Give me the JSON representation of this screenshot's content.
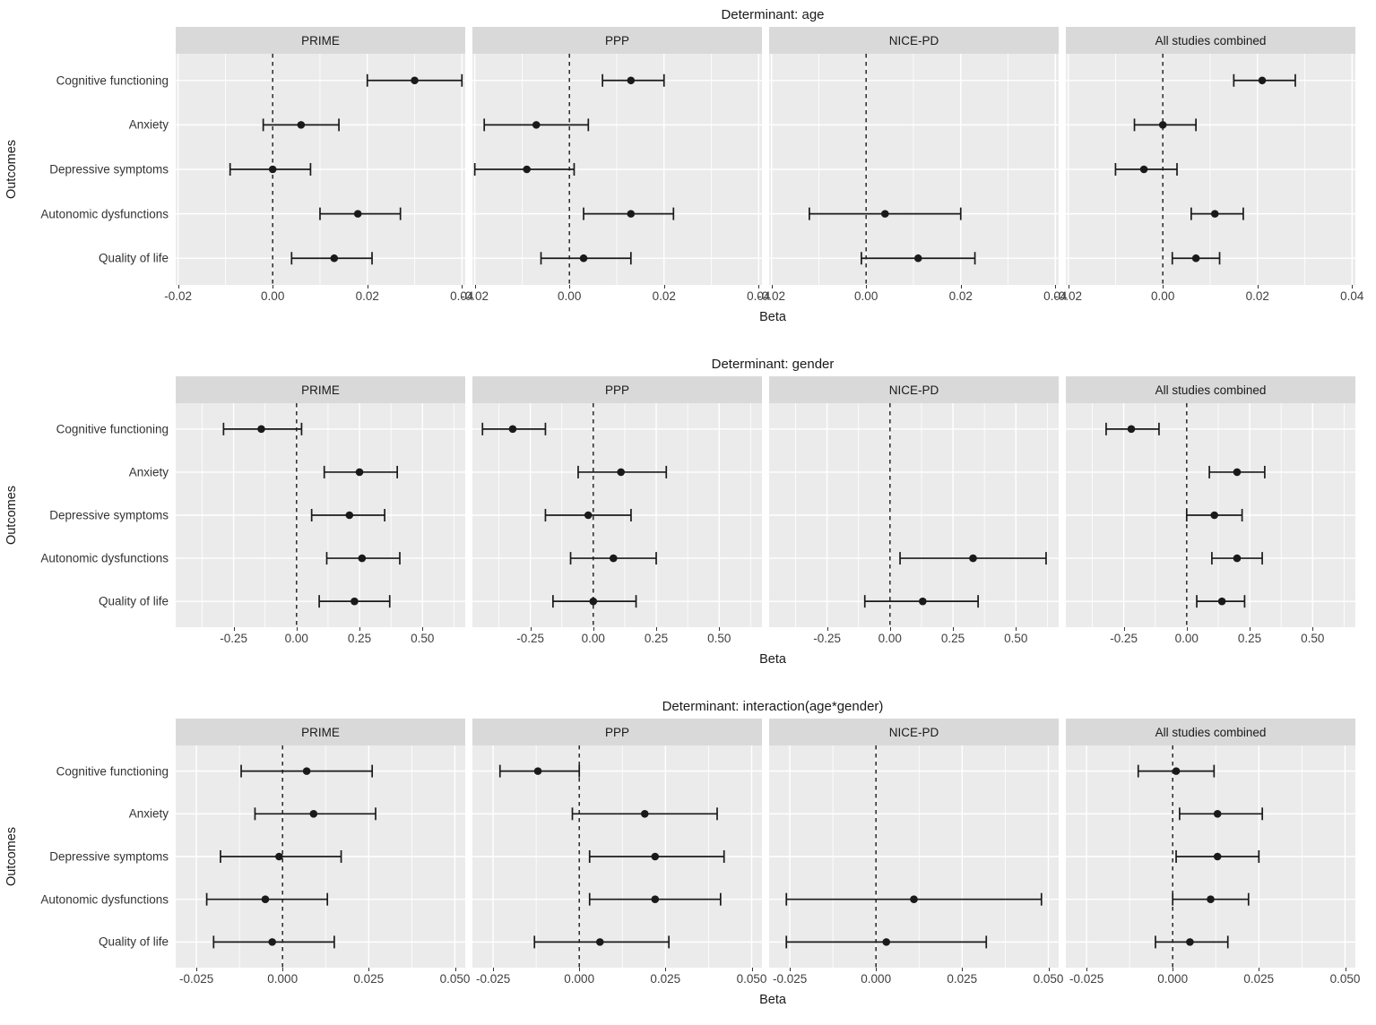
{
  "figure": {
    "y_axis_title": "Outcomes",
    "x_axis_title": "Beta",
    "facet_labels": [
      "PRIME",
      "PPP",
      "NICE-PD",
      "All studies combined"
    ],
    "outcome_labels": [
      "Cognitive functioning",
      "Anxiety",
      "Depressive symptoms",
      "Autonomic dysfunctions",
      "Quality of life"
    ],
    "colors": {
      "panel_background": "#ebebeb",
      "strip_background": "#d9d9d9",
      "gridline": "#ffffff",
      "marker": "#1a1a1a",
      "axis_text": "#404040",
      "title_text": "#1a1a1a"
    }
  },
  "chart_data": [
    {
      "type": "scatter",
      "variant": "forest-plot",
      "title": "Determinant: age",
      "xlabel": "Beta",
      "ylabel": "Outcomes",
      "legend_position": "none",
      "grid": true,
      "zero_line": 0,
      "categories": [
        "Cognitive functioning",
        "Anxiety",
        "Depressive symptoms",
        "Autonomic dysfunctions",
        "Quality of life"
      ],
      "xlim": [
        -0.0205,
        0.0407
      ],
      "xticks": {
        "values": [
          -0.02,
          0.0,
          0.02,
          0.04
        ],
        "labels": [
          "-0.02",
          "0.00",
          "0.02",
          "0.04"
        ]
      },
      "xminor": [
        -0.01,
        0.01,
        0.03
      ],
      "series": [
        {
          "name": "PRIME",
          "estimates": [
            {
              "beta": 0.03,
              "lo": 0.02,
              "hi": 0.04
            },
            {
              "beta": 0.006,
              "lo": -0.002,
              "hi": 0.014
            },
            {
              "beta": 0.0,
              "lo": -0.009,
              "hi": 0.008
            },
            {
              "beta": 0.018,
              "lo": 0.01,
              "hi": 0.027
            },
            {
              "beta": 0.013,
              "lo": 0.004,
              "hi": 0.021
            }
          ]
        },
        {
          "name": "PPP",
          "estimates": [
            {
              "beta": 0.013,
              "lo": 0.007,
              "hi": 0.02
            },
            {
              "beta": -0.007,
              "lo": -0.018,
              "hi": 0.004
            },
            {
              "beta": -0.009,
              "lo": -0.02,
              "hi": 0.001
            },
            {
              "beta": 0.013,
              "lo": 0.003,
              "hi": 0.022
            },
            {
              "beta": 0.003,
              "lo": -0.006,
              "hi": 0.013
            }
          ]
        },
        {
          "name": "NICE-PD",
          "estimates": [
            null,
            null,
            null,
            {
              "beta": 0.004,
              "lo": -0.012,
              "hi": 0.02
            },
            {
              "beta": 0.011,
              "lo": -0.001,
              "hi": 0.023
            }
          ]
        },
        {
          "name": "All studies combined",
          "estimates": [
            {
              "beta": 0.021,
              "lo": 0.015,
              "hi": 0.028
            },
            {
              "beta": 0.0,
              "lo": -0.006,
              "hi": 0.007
            },
            {
              "beta": -0.004,
              "lo": -0.01,
              "hi": 0.003
            },
            {
              "beta": 0.011,
              "lo": 0.006,
              "hi": 0.017
            },
            {
              "beta": 0.007,
              "lo": 0.002,
              "hi": 0.012
            }
          ]
        }
      ]
    },
    {
      "type": "scatter",
      "variant": "forest-plot",
      "title": "Determinant: gender",
      "xlabel": "Beta",
      "ylabel": "Outcomes",
      "legend_position": "none",
      "grid": true,
      "zero_line": 0,
      "categories": [
        "Cognitive functioning",
        "Anxiety",
        "Depressive symptoms",
        "Autonomic dysfunctions",
        "Quality of life"
      ],
      "xlim": [
        -0.48,
        0.67
      ],
      "xticks": {
        "values": [
          -0.25,
          0.0,
          0.25,
          0.5
        ],
        "labels": [
          "-0.25",
          "0.00",
          "0.25",
          "0.50"
        ]
      },
      "xminor": [
        -0.375,
        -0.125,
        0.125,
        0.375,
        0.625
      ],
      "series": [
        {
          "name": "PRIME",
          "estimates": [
            {
              "beta": -0.14,
              "lo": -0.29,
              "hi": 0.02
            },
            {
              "beta": 0.25,
              "lo": 0.11,
              "hi": 0.4
            },
            {
              "beta": 0.21,
              "lo": 0.06,
              "hi": 0.35
            },
            {
              "beta": 0.26,
              "lo": 0.12,
              "hi": 0.41
            },
            {
              "beta": 0.23,
              "lo": 0.09,
              "hi": 0.37
            }
          ]
        },
        {
          "name": "PPP",
          "estimates": [
            {
              "beta": -0.32,
              "lo": -0.44,
              "hi": -0.19
            },
            {
              "beta": 0.11,
              "lo": -0.06,
              "hi": 0.29
            },
            {
              "beta": -0.02,
              "lo": -0.19,
              "hi": 0.15
            },
            {
              "beta": 0.08,
              "lo": -0.09,
              "hi": 0.25
            },
            {
              "beta": 0.0,
              "lo": -0.16,
              "hi": 0.17
            }
          ]
        },
        {
          "name": "NICE-PD",
          "estimates": [
            null,
            null,
            null,
            {
              "beta": 0.33,
              "lo": 0.04,
              "hi": 0.62
            },
            {
              "beta": 0.13,
              "lo": -0.1,
              "hi": 0.35
            }
          ]
        },
        {
          "name": "All studies combined",
          "estimates": [
            {
              "beta": -0.22,
              "lo": -0.32,
              "hi": -0.11
            },
            {
              "beta": 0.2,
              "lo": 0.09,
              "hi": 0.31
            },
            {
              "beta": 0.11,
              "lo": 0.0,
              "hi": 0.22
            },
            {
              "beta": 0.2,
              "lo": 0.1,
              "hi": 0.3
            },
            {
              "beta": 0.14,
              "lo": 0.04,
              "hi": 0.23
            }
          ]
        }
      ]
    },
    {
      "type": "scatter",
      "variant": "forest-plot",
      "title": "Determinant: interaction(age*gender)",
      "xlabel": "Beta",
      "ylabel": "Outcomes",
      "legend_position": "none",
      "grid": true,
      "zero_line": 0,
      "categories": [
        "Cognitive functioning",
        "Anxiety",
        "Depressive symptoms",
        "Autonomic dysfunctions",
        "Quality of life"
      ],
      "xlim": [
        -0.031,
        0.053
      ],
      "xticks": {
        "values": [
          -0.025,
          0.0,
          0.025,
          0.05
        ],
        "labels": [
          "-0.025",
          "0.000",
          "0.025",
          "0.050"
        ]
      },
      "xminor": [
        -0.0125,
        0.0125,
        0.0375
      ],
      "series": [
        {
          "name": "PRIME",
          "estimates": [
            {
              "beta": 0.007,
              "lo": -0.012,
              "hi": 0.026
            },
            {
              "beta": 0.009,
              "lo": -0.008,
              "hi": 0.027
            },
            {
              "beta": -0.001,
              "lo": -0.018,
              "hi": 0.017
            },
            {
              "beta": -0.005,
              "lo": -0.022,
              "hi": 0.013
            },
            {
              "beta": -0.003,
              "lo": -0.02,
              "hi": 0.015
            }
          ]
        },
        {
          "name": "PPP",
          "estimates": [
            {
              "beta": -0.012,
              "lo": -0.023,
              "hi": 0.0
            },
            {
              "beta": 0.019,
              "lo": -0.002,
              "hi": 0.04
            },
            {
              "beta": 0.022,
              "lo": 0.003,
              "hi": 0.042
            },
            {
              "beta": 0.022,
              "lo": 0.003,
              "hi": 0.041
            },
            {
              "beta": 0.006,
              "lo": -0.013,
              "hi": 0.026
            }
          ]
        },
        {
          "name": "NICE-PD",
          "estimates": [
            null,
            null,
            null,
            {
              "beta": 0.011,
              "lo": -0.026,
              "hi": 0.048
            },
            {
              "beta": 0.003,
              "lo": -0.026,
              "hi": 0.032
            }
          ]
        },
        {
          "name": "All studies combined",
          "estimates": [
            {
              "beta": 0.001,
              "lo": -0.01,
              "hi": 0.012
            },
            {
              "beta": 0.013,
              "lo": 0.002,
              "hi": 0.026
            },
            {
              "beta": 0.013,
              "lo": 0.001,
              "hi": 0.025
            },
            {
              "beta": 0.011,
              "lo": 0.0,
              "hi": 0.022
            },
            {
              "beta": 0.005,
              "lo": -0.005,
              "hi": 0.016
            }
          ]
        }
      ]
    }
  ]
}
